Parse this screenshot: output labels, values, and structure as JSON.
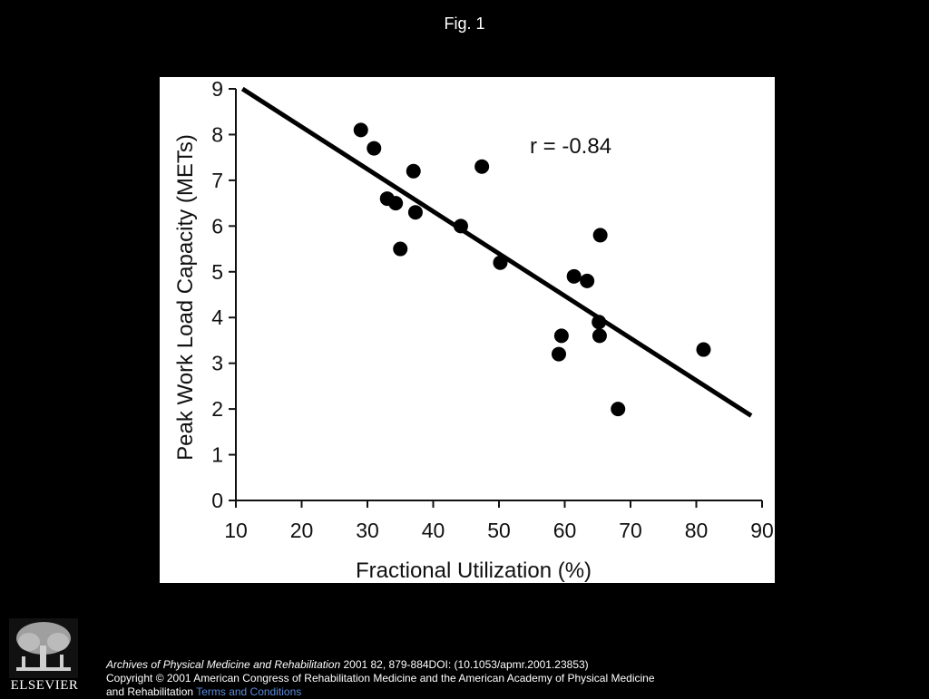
{
  "slide": {
    "title": "Fig. 1",
    "citation_journal": "Archives of Physical Medicine and Rehabilitation",
    "citation_rest": " 2001 82, 879-884DOI: (10.1053/apmr.2001.23853)",
    "copyright_text": "Copyright © 2001 American Congress of Rehabilitation Medicine and the American Academy of Physical Medicine and Rehabilitation ",
    "terms_label": "Terms and Conditions",
    "publisher_logo_text": "ELSEVIER",
    "link_color": "#5a8ad8",
    "background_color": "#000000"
  },
  "chart_data": {
    "type": "scatter",
    "title": "",
    "xlabel": "Fractional Utilization (%)",
    "ylabel": "Peak Work Load Capacity (METs)",
    "xlim": [
      10,
      90
    ],
    "ylim": [
      0,
      9
    ],
    "xticks": [
      10,
      20,
      30,
      40,
      50,
      60,
      70,
      80,
      90
    ],
    "yticks": [
      0,
      1,
      2,
      3,
      4,
      5,
      6,
      7,
      8,
      9
    ],
    "grid": false,
    "annotation": "r = -0.84",
    "points": [
      {
        "x": 29,
        "y": 8.1
      },
      {
        "x": 31,
        "y": 7.7
      },
      {
        "x": 33,
        "y": 6.6
      },
      {
        "x": 34.3,
        "y": 6.5
      },
      {
        "x": 35,
        "y": 5.5
      },
      {
        "x": 37,
        "y": 7.2
      },
      {
        "x": 37.3,
        "y": 6.3
      },
      {
        "x": 44.2,
        "y": 6.0
      },
      {
        "x": 47.4,
        "y": 7.3
      },
      {
        "x": 50.2,
        "y": 5.2
      },
      {
        "x": 59.1,
        "y": 3.2
      },
      {
        "x": 59.5,
        "y": 3.6
      },
      {
        "x": 61.4,
        "y": 4.9
      },
      {
        "x": 63.4,
        "y": 4.8
      },
      {
        "x": 65.2,
        "y": 3.9
      },
      {
        "x": 65.3,
        "y": 3.6
      },
      {
        "x": 65.4,
        "y": 5.8
      },
      {
        "x": 68.1,
        "y": 2.0
      },
      {
        "x": 81.1,
        "y": 3.3
      }
    ],
    "regression_line": {
      "x1": 11,
      "y1": 9.0,
      "x2": 90,
      "y2": 1.7
    }
  }
}
